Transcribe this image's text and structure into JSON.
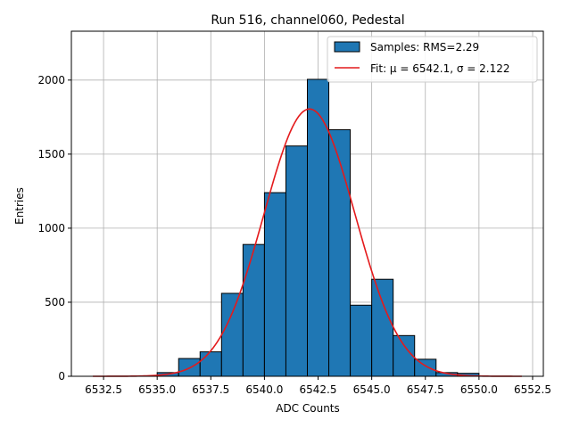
{
  "chart_data": {
    "type": "bar",
    "title": "Run 516, channel060, Pedestal",
    "xlabel": "ADC Counts",
    "ylabel": "Entries",
    "xlim": [
      6531.0,
      6553.0
    ],
    "ylim": [
      0,
      2330
    ],
    "grid": true,
    "legend_position": "top-right",
    "xticks": [
      6532.5,
      6535.0,
      6537.5,
      6540.0,
      6542.5,
      6545.0,
      6547.5,
      6550.0,
      6552.5
    ],
    "xtick_labels": [
      "6532.5",
      "6535.0",
      "6537.5",
      "6540.0",
      "6542.5",
      "6545.0",
      "6547.5",
      "6550.0",
      "6552.5"
    ],
    "yticks": [
      0,
      500,
      1000,
      1500,
      2000
    ],
    "ytick_labels": [
      "0",
      "500",
      "1000",
      "1500",
      "2000"
    ],
    "bin_edges": [
      6535,
      6536,
      6537,
      6538,
      6539,
      6540,
      6541,
      6542,
      6543,
      6544,
      6545,
      6546,
      6547,
      6548,
      6549,
      6550
    ],
    "series": [
      {
        "name": "Samples: RMS=2.29",
        "kind": "histogram",
        "color": "#1f77b4",
        "edgecolor": "#000000",
        "values": [
          25,
          120,
          165,
          560,
          890,
          1240,
          1555,
          2005,
          1665,
          480,
          655,
          275,
          115,
          25,
          20
        ]
      },
      {
        "name": "Fit: μ = 6542.1, σ = 2.122",
        "kind": "gaussian-fit",
        "color": "#e41a1c",
        "mu": 6542.1,
        "sigma": 2.122,
        "amplitude": 1805,
        "x_range": [
          6532,
          6552
        ]
      }
    ]
  }
}
